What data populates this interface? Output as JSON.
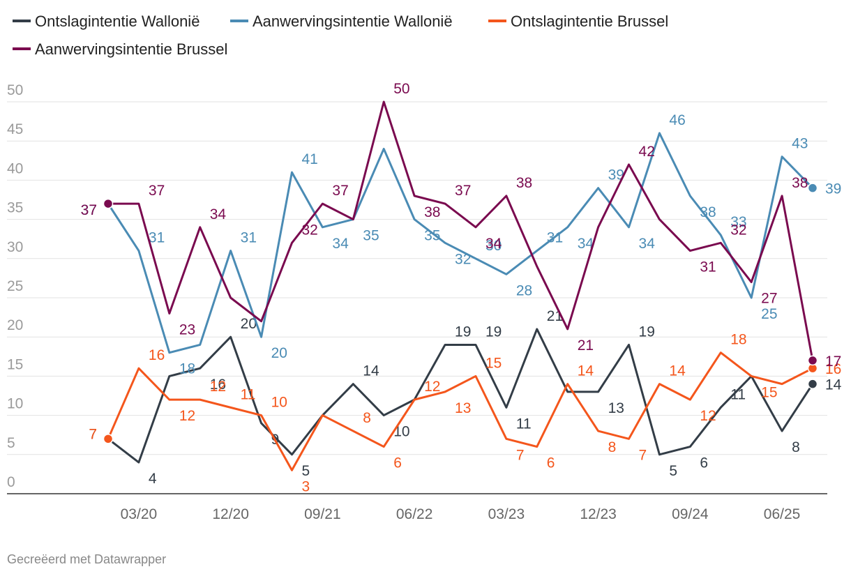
{
  "chart_data": {
    "type": "line",
    "categories": [
      null,
      "03/20",
      null,
      null,
      "12/20",
      null,
      null,
      "09/21",
      null,
      null,
      "06/22",
      null,
      null,
      "03/23",
      null,
      null,
      "12/23",
      null,
      null,
      "09/24",
      null,
      null,
      "06/25",
      null
    ],
    "series": [
      {
        "name": "Ontslagintentie Wallonië",
        "color": "#333d47",
        "values": [
          7,
          4,
          15,
          16,
          20,
          9,
          5,
          10,
          14,
          10,
          12,
          19,
          19,
          11,
          21,
          13,
          13,
          19,
          5,
          6,
          11,
          15,
          8,
          14
        ],
        "value_labels": [
          "7",
          "4",
          null,
          "16",
          "20",
          "9",
          "5",
          null,
          "14",
          "10",
          null,
          "19",
          "19",
          "11",
          "21",
          null,
          "13",
          "19",
          "5",
          "6",
          "11",
          null,
          "8",
          "14"
        ]
      },
      {
        "name": "Aanwervingsintentie Wallonië",
        "color": "#4a8bb4",
        "values": [
          37,
          31,
          18,
          19,
          31,
          20,
          41,
          34,
          35,
          44,
          35,
          32,
          30,
          28,
          31,
          34,
          39,
          34,
          46,
          38,
          33,
          25,
          43,
          39
        ],
        "value_labels": [
          "37",
          "31",
          "18",
          null,
          "31",
          "20",
          "41",
          "34",
          "35",
          null,
          "35",
          "32",
          "30",
          "28",
          "31",
          "34",
          "39",
          "34",
          "46",
          "38",
          "33",
          "25",
          "43",
          "39"
        ]
      },
      {
        "name": "Ontslagintentie Brussel",
        "color": "#f4561c",
        "values": [
          7,
          16,
          12,
          12,
          11,
          10,
          3,
          10,
          8,
          6,
          12,
          13,
          15,
          7,
          6,
          14,
          8,
          7,
          14,
          12,
          18,
          15,
          14,
          16
        ],
        "value_labels": [
          "7",
          "16",
          "12",
          "12",
          "11",
          "10",
          "3",
          null,
          "8",
          "6",
          "12",
          "13",
          "15",
          "7",
          "6",
          "14",
          "8",
          "7",
          "14",
          "12",
          "18",
          "15",
          null,
          "16"
        ]
      },
      {
        "name": "Aanwervingsintentie Brussel",
        "color": "#7a0a4f",
        "values": [
          37,
          37,
          23,
          34,
          25,
          22,
          32,
          37,
          35,
          50,
          38,
          37,
          34,
          38,
          29,
          21,
          34,
          42,
          35,
          31,
          32,
          27,
          38,
          17
        ],
        "value_labels": [
          "37",
          "37",
          "23",
          "34",
          null,
          null,
          "32",
          "37",
          null,
          "50",
          "38",
          "37",
          "34",
          "38",
          null,
          "21",
          null,
          "42",
          null,
          "31",
          "32",
          "27",
          "38",
          "17"
        ]
      }
    ],
    "ylim": [
      0,
      50
    ],
    "yticks": [
      0,
      5,
      10,
      15,
      20,
      25,
      30,
      35,
      40,
      45,
      50
    ],
    "grid": true,
    "footer": "Gecreëerd met Datawrapper"
  }
}
